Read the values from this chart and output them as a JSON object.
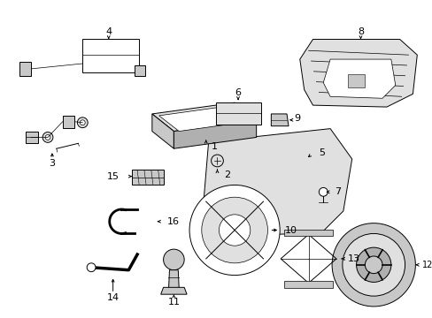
{
  "bg_color": "#ffffff",
  "line_color": "#000000",
  "fig_width": 4.89,
  "fig_height": 3.6,
  "dpi": 100,
  "gray_fill": "#c8c8c8",
  "light_gray": "#e0e0e0",
  "mid_gray": "#b0b0b0"
}
